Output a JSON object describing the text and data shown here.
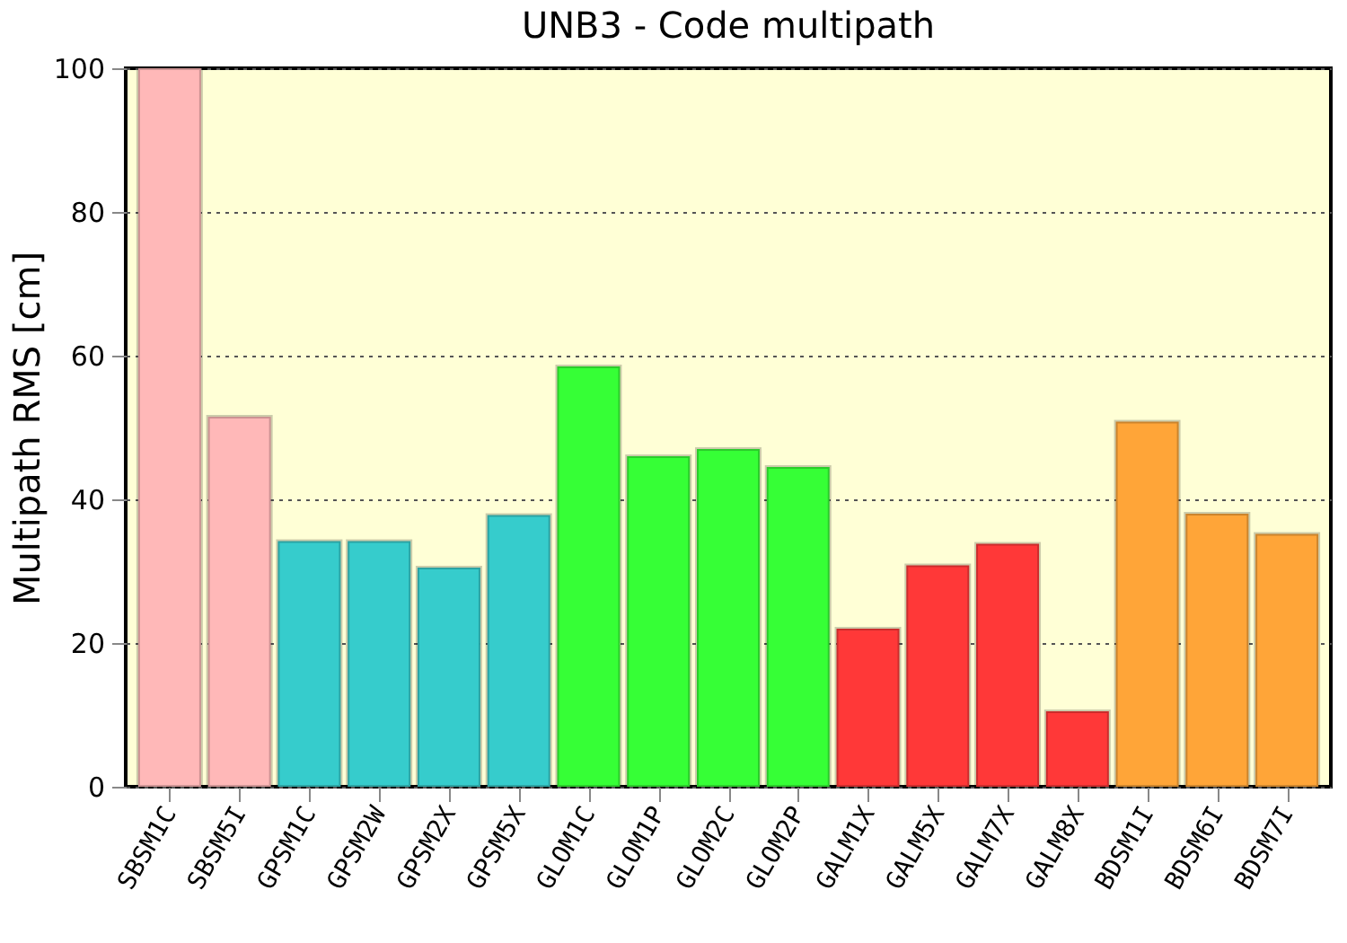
{
  "chart_data": {
    "type": "bar",
    "title": "UNB3 - Code multipath",
    "ylabel": "Multipath RMS [cm]",
    "categories": [
      "SBSM1C",
      "SBSM5I",
      "GPSM1C",
      "GPSM2W",
      "GPSM2X",
      "GPSM5X",
      "GLOM1C",
      "GLOM1P",
      "GLOM2C",
      "GLOM2P",
      "GALM1X",
      "GALM5X",
      "GALM7X",
      "GALM8X",
      "BDSM1I",
      "BDSM6I",
      "BDSM7I"
    ],
    "values": [
      100,
      51.5,
      34.2,
      34.2,
      30.5,
      37.8,
      58.5,
      46,
      47,
      44.5,
      22,
      30.8,
      33.8,
      10.5,
      50.8,
      38,
      35.2
    ],
    "colors": [
      "#ffb8b8",
      "#ffb8b8",
      "#36cccc",
      "#36cccc",
      "#36cccc",
      "#36cccc",
      "#36ff36",
      "#36ff36",
      "#36ff36",
      "#36ff36",
      "#ff3838",
      "#ff3838",
      "#ff3838",
      "#ff3838",
      "#ffa538",
      "#ffa538",
      "#ffa538"
    ],
    "ylim": [
      0,
      100
    ],
    "yticks": [
      0,
      20,
      40,
      60,
      80,
      100
    ],
    "grid": "y"
  }
}
